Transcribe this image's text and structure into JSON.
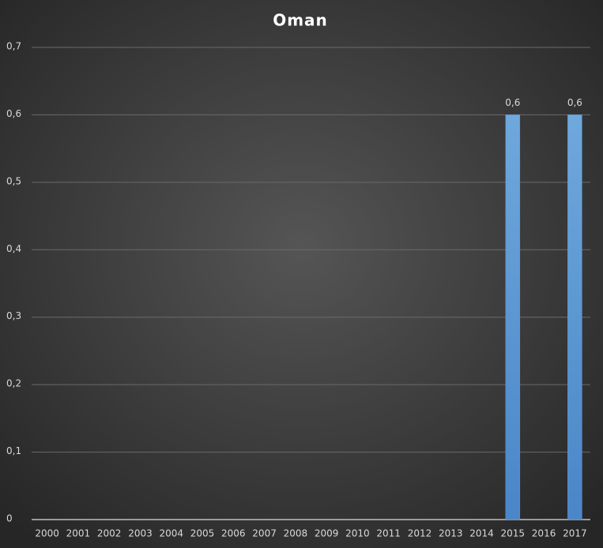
{
  "chart_data": {
    "type": "bar",
    "title": "Oman",
    "categories": [
      "2000",
      "2001",
      "2002",
      "2003",
      "2004",
      "2005",
      "2006",
      "2007",
      "2008",
      "2009",
      "2010",
      "2011",
      "2012",
      "2013",
      "2014",
      "2015",
      "2016",
      "2017"
    ],
    "values": [
      null,
      null,
      null,
      null,
      null,
      null,
      null,
      null,
      null,
      null,
      null,
      null,
      null,
      null,
      null,
      0.6,
      null,
      0.6
    ],
    "value_labels": [
      null,
      null,
      null,
      null,
      null,
      null,
      null,
      null,
      null,
      null,
      null,
      null,
      null,
      null,
      null,
      "0,6",
      null,
      "0,6"
    ],
    "color": "#5b9bd5",
    "ylim": [
      0,
      0.7
    ],
    "yticks": [
      0,
      {
        "value": 0.1,
        "label": "0,1"
      },
      {
        "value": 0.2,
        "label": "0,2"
      },
      {
        "value": 0.3,
        "label": "0,3"
      },
      {
        "value": 0.4,
        "label": "0,4"
      },
      {
        "value": 0.5,
        "label": "0,5"
      },
      {
        "value": 0.6,
        "label": "0,6"
      },
      {
        "value": 0.7,
        "label": "0,7"
      }
    ],
    "grid": true
  }
}
